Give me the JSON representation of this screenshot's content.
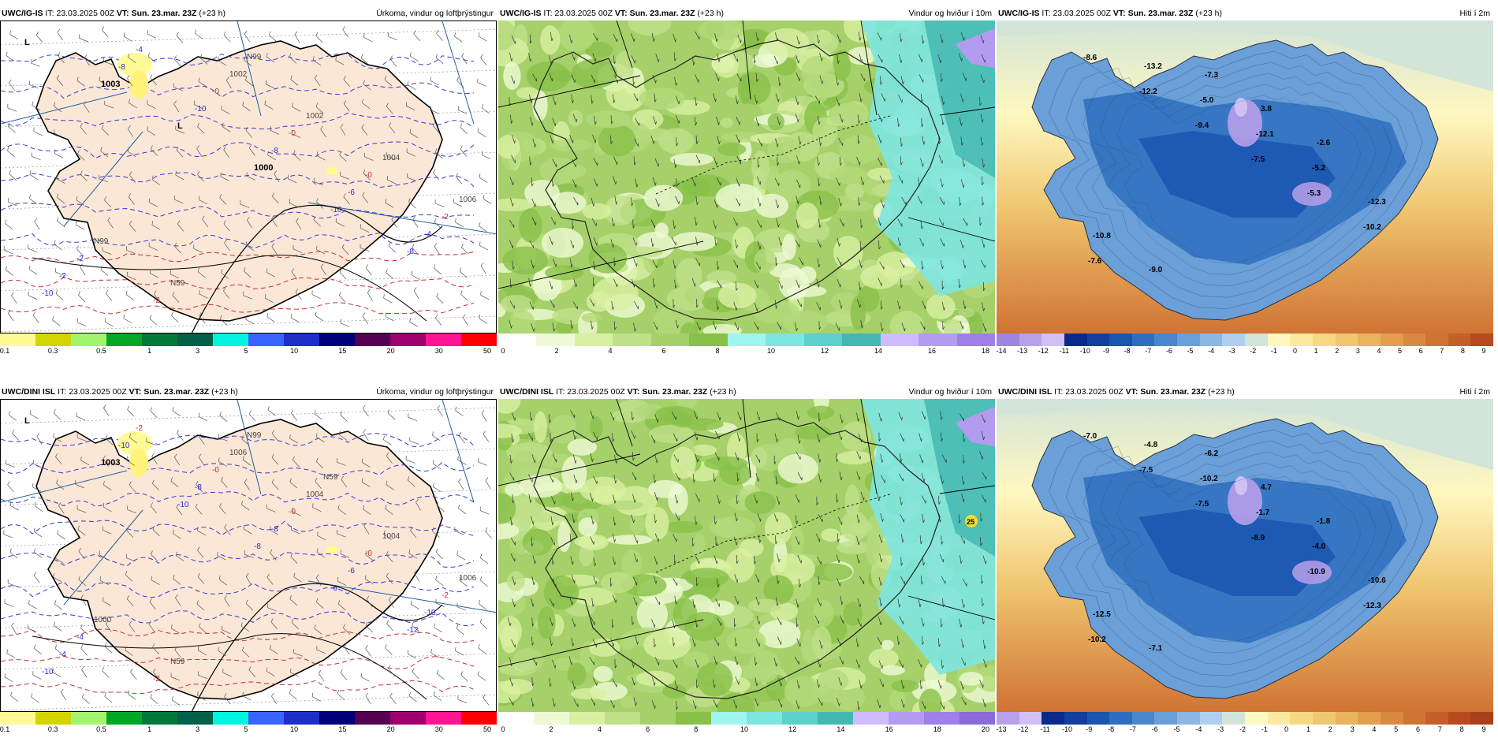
{
  "rows": [
    {
      "model": "UWC/IG-IS",
      "panels": [
        {
          "it_label": "IT:",
          "it_value": "23.03.2025 00Z",
          "vt_label": "VT:",
          "vt_value": "Sun. 23.mar. 23Z",
          "lead": "(+23 h)",
          "title": "Úrkoma, vindur og loftþrýstingur",
          "kind": "precip",
          "map_labels": [
            {
              "text": "L",
              "bold": true
            },
            {
              "text": "1003",
              "bold": true
            },
            {
              "text": "L",
              "bold": true
            },
            {
              "text": "1000",
              "bold": true
            },
            {
              "text": "-10"
            },
            {
              "text": "-8"
            },
            {
              "text": "-10"
            },
            {
              "text": "-8"
            },
            {
              "text": "-10"
            },
            {
              "text": "-8"
            },
            {
              "text": "-6"
            },
            {
              "text": "-4"
            },
            {
              "text": "-2"
            },
            {
              "text": "-4"
            },
            {
              "text": "-0"
            },
            {
              "text": "-0"
            },
            {
              "text": "-0"
            },
            {
              "text": "-2"
            },
            {
              "text": "-2"
            },
            {
              "text": "-2"
            },
            {
              "text": "1002"
            },
            {
              "text": "1002"
            },
            {
              "text": "1004"
            },
            {
              "text": "1006"
            },
            {
              "text": "N99"
            },
            {
              "text": "N59"
            },
            {
              "text": "N99"
            }
          ],
          "colorbar": {
            "colors": [
              "#fffa95",
              "#d4d400",
              "#a3f56e",
              "#00a825",
              "#00783a",
              "#006048",
              "#00f5e0",
              "#3a64ff",
              "#1e2fc8",
              "#000078",
              "#550050",
              "#9e006e",
              "#ff1493",
              "#ff0000"
            ],
            "labels": [
              "0.1",
              "0.3",
              "0.5",
              "1",
              "3",
              "5",
              "10",
              "15",
              "20",
              "30",
              "50"
            ]
          }
        },
        {
          "it_label": "IT:",
          "it_value": "23.03.2025 00Z",
          "vt_label": "VT:",
          "vt_value": "Sun. 23.mar. 23Z",
          "lead": "(+23 h)",
          "title": "Vindur og hviður í 10m",
          "kind": "wind",
          "map_labels": [],
          "colorbar": {
            "colors": [
              "#ffffff",
              "#eefad5",
              "#d9f0a3",
              "#c0e08a",
              "#a6d06a",
              "#88c048",
              "#9ff5f0",
              "#7ee6e0",
              "#5cd0cc",
              "#44b8b0",
              "#cfbcff",
              "#b39cf0",
              "#9e80e8"
            ],
            "labels": [
              "0",
              "2",
              "4",
              "6",
              "8",
              "10",
              "12",
              "14",
              "16",
              "18"
            ]
          }
        },
        {
          "it_label": "IT:",
          "it_value": "23.03.2025 00Z",
          "vt_label": "VT:",
          "vt_value": "Sun. 23.mar. 23Z",
          "lead": "(+23 h)",
          "title": "Hiti í 2m",
          "kind": "temp",
          "map_labels": [
            {
              "text": "-8.6"
            },
            {
              "text": "-12.2"
            },
            {
              "text": "-9.4"
            },
            {
              "text": "-7.5"
            },
            {
              "text": "-5.3"
            },
            {
              "text": "-10.2"
            },
            {
              "text": "-7.6"
            },
            {
              "text": "-13.2"
            },
            {
              "text": "-5.0"
            },
            {
              "text": "-12.1"
            },
            {
              "text": "-5.2"
            },
            {
              "text": "-12.3"
            },
            {
              "text": "-10.8"
            },
            {
              "text": "-9.0"
            },
            {
              "text": "-7.3"
            },
            {
              "text": "3.8"
            },
            {
              "text": "-2.6"
            }
          ],
          "colorbar": {
            "colors": [
              "#9f84e0",
              "#b8a0ea",
              "#d0c0f4",
              "#0a2a8a",
              "#123e9e",
              "#1a55b0",
              "#2e6ec0",
              "#4b86cc",
              "#6a9fd8",
              "#8cb7e2",
              "#b0cfee",
              "#d3e4d8",
              "#fff8c0",
              "#fbeaa0",
              "#f6d985",
              "#f0c670",
              "#eab35e",
              "#e39e4e",
              "#da8940",
              "#d07434",
              "#c55f2a",
              "#b84a20"
            ],
            "labels": [
              "-14",
              "-13",
              "-12",
              "-11",
              "-10",
              "-9",
              "-8",
              "-7",
              "-6",
              "-5",
              "-4",
              "-3",
              "-2",
              "-1",
              "0",
              "1",
              "2",
              "3",
              "4",
              "5",
              "6",
              "7",
              "8",
              "9"
            ]
          }
        }
      ]
    },
    {
      "model": "UWC/DINI ISL",
      "panels": [
        {
          "it_label": "IT:",
          "it_value": "23.03.2025 00Z",
          "vt_label": "VT:",
          "vt_value": "Sun. 23.mar. 23Z",
          "lead": "(+23 h)",
          "title": "Úrkoma, vindur og loftþrýstingur",
          "kind": "precip",
          "map_labels": [
            {
              "text": "L",
              "bold": true
            },
            {
              "text": "1003",
              "bold": true
            },
            {
              "text": "-10"
            },
            {
              "text": "-8"
            },
            {
              "text": "-6"
            },
            {
              "text": "-12"
            },
            {
              "text": "-10"
            },
            {
              "text": "-10"
            },
            {
              "text": "-8"
            },
            {
              "text": "-8"
            },
            {
              "text": "-6"
            },
            {
              "text": "-10"
            },
            {
              "text": "-4"
            },
            {
              "text": "-2"
            },
            {
              "text": "-0"
            },
            {
              "text": "-0"
            },
            {
              "text": "-0"
            },
            {
              "text": "-2"
            },
            {
              "text": "-4"
            },
            {
              "text": "-2"
            },
            {
              "text": "1006"
            },
            {
              "text": "1004"
            },
            {
              "text": "1004"
            },
            {
              "text": "1006"
            },
            {
              "text": "1000"
            },
            {
              "text": "N59"
            },
            {
              "text": "N99"
            },
            {
              "text": "N59"
            }
          ],
          "colorbar": {
            "colors": [
              "#fffa95",
              "#d4d400",
              "#a3f56e",
              "#00a825",
              "#00783a",
              "#006048",
              "#00f5e0",
              "#3a64ff",
              "#1e2fc8",
              "#000078",
              "#550050",
              "#9e006e",
              "#ff1493",
              "#ff0000"
            ],
            "labels": [
              "0.1",
              "0.3",
              "0.5",
              "1",
              "3",
              "5",
              "10",
              "15",
              "20",
              "30",
              "50"
            ]
          }
        },
        {
          "it_label": "IT:",
          "it_value": "23.03.2025 00Z",
          "vt_label": "VT:",
          "vt_value": "Sun. 23.mar. 23Z",
          "lead": "(+23 h)",
          "title": "Vindur og hviður í 10m",
          "kind": "wind",
          "map_labels": [
            {
              "text": "25"
            }
          ],
          "colorbar": {
            "colors": [
              "#ffffff",
              "#eefad5",
              "#d9f0a3",
              "#c0e08a",
              "#a6d06a",
              "#88c048",
              "#9ff5f0",
              "#7ee6e0",
              "#5cd0cc",
              "#44b8b0",
              "#cfbcff",
              "#b39cf0",
              "#9e80e8",
              "#8a6ad8"
            ],
            "labels": [
              "0",
              "2",
              "4",
              "6",
              "8",
              "10",
              "12",
              "14",
              "16",
              "18",
              "20"
            ]
          }
        },
        {
          "it_label": "IT:",
          "it_value": "23.03.2025 00Z",
          "vt_label": "VT:",
          "vt_value": "Sun. 23.mar. 23Z",
          "lead": "(+23 h)",
          "title": "Hiti í 2m",
          "kind": "temp",
          "map_labels": [
            {
              "text": "-7.0"
            },
            {
              "text": "-7.5"
            },
            {
              "text": "-7.5"
            },
            {
              "text": "-8.9"
            },
            {
              "text": "-10.9"
            },
            {
              "text": "-12.3"
            },
            {
              "text": "-10.2"
            },
            {
              "text": "-4.8"
            },
            {
              "text": "-10.2"
            },
            {
              "text": "-1.7"
            },
            {
              "text": "-4.0"
            },
            {
              "text": "-10.6"
            },
            {
              "text": "-12.5"
            },
            {
              "text": "-7.1"
            },
            {
              "text": "-6.2"
            },
            {
              "text": "4.7"
            },
            {
              "text": "-1.8"
            }
          ],
          "colorbar": {
            "colors": [
              "#b8a0ea",
              "#d0c0f4",
              "#0a2a8a",
              "#123e9e",
              "#1a55b0",
              "#2e6ec0",
              "#4b86cc",
              "#6a9fd8",
              "#8cb7e2",
              "#b0cfee",
              "#d3e4d8",
              "#fff8c0",
              "#fbeaa0",
              "#f6d985",
              "#f0c670",
              "#eab35e",
              "#e39e4e",
              "#da8940",
              "#d07434",
              "#c55f2a",
              "#b84a20",
              "#a8401a"
            ],
            "labels": [
              "-13",
              "-12",
              "-11",
              "-10",
              "-9",
              "-8",
              "-7",
              "-6",
              "-5",
              "-4",
              "-3",
              "-2",
              "-1",
              "0",
              "1",
              "2",
              "3",
              "4",
              "5",
              "6",
              "7",
              "8",
              "9"
            ]
          }
        }
      ]
    }
  ]
}
